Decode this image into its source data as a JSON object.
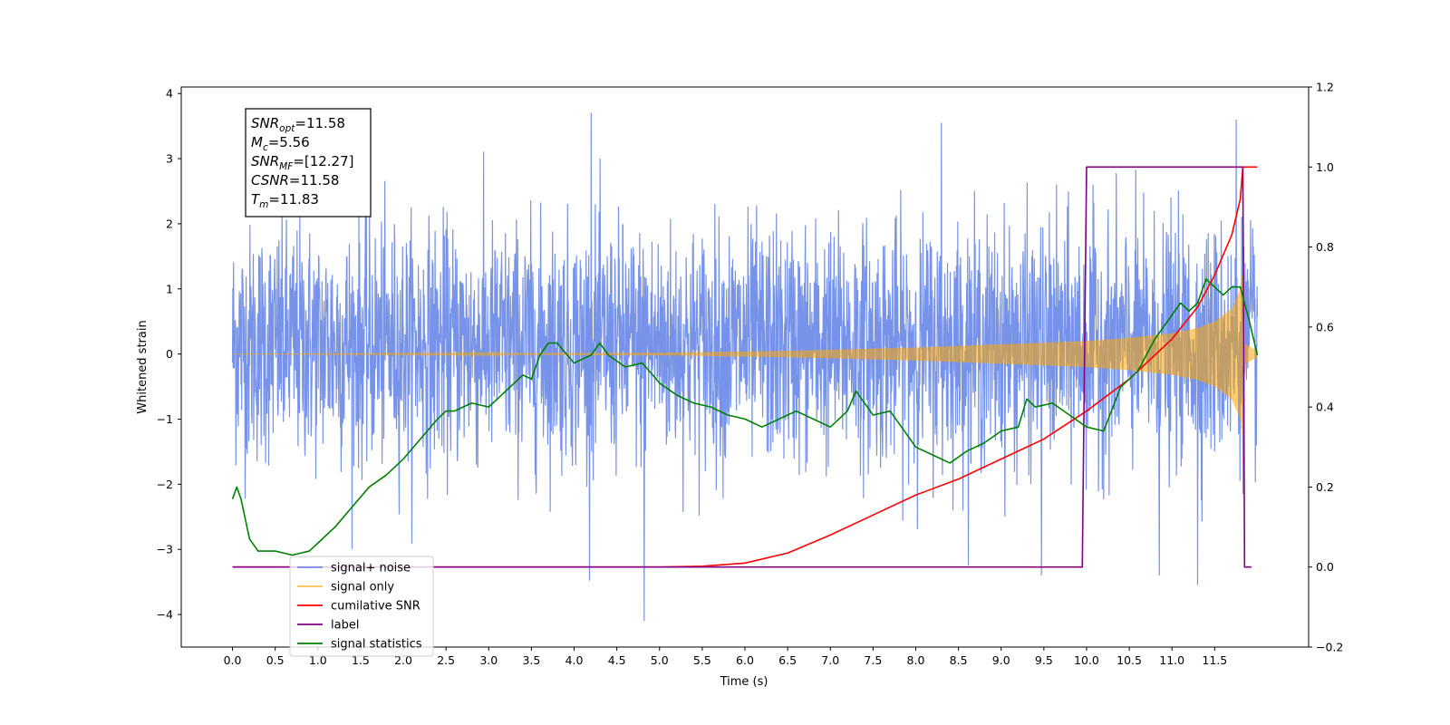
{
  "chart_data": {
    "type": "line",
    "xlabel": "Time (s)",
    "ylabel": "Whitened strain",
    "xlim": [
      -0.6,
      12.6
    ],
    "ylim": [
      -4.5,
      4.1
    ],
    "y2lim": [
      -0.2,
      1.2
    ],
    "x_ticks": [
      "0.0",
      "0.5",
      "1.0",
      "1.5",
      "2.0",
      "2.5",
      "3.0",
      "3.5",
      "4.0",
      "4.5",
      "5.0",
      "5.5",
      "6.0",
      "6.5",
      "7.0",
      "7.5",
      "8.0",
      "8.5",
      "9.0",
      "9.5",
      "10.0",
      "10.5",
      "11.0",
      "11.5"
    ],
    "y_ticks": [
      "4",
      "3",
      "2",
      "1",
      "0",
      "−1",
      "−2",
      "−3",
      "−4"
    ],
    "y2_ticks": [
      "1.2",
      "1.0",
      "0.8",
      "0.6",
      "0.4",
      "0.2",
      "0.0",
      "−0.2"
    ],
    "annotation": [
      {
        "base": "SNR",
        "sub": "opt",
        "value": "=11.58"
      },
      {
        "base": "M",
        "sub": "c",
        "value": "=5.56"
      },
      {
        "base": "SNR",
        "sub": "MF",
        "value": "=[12.27]"
      },
      {
        "base": "CSNR",
        "sub": "",
        "value": "=11.58"
      },
      {
        "base": "T",
        "sub": "m",
        "value": "=11.83"
      }
    ],
    "legend_position": "lower-left",
    "legend": [
      {
        "label": "signal+ noise",
        "color": "#4169e1"
      },
      {
        "label": "signal only",
        "color": "#ffa500"
      },
      {
        "label": "cumilative SNR",
        "color": "#ff0000"
      },
      {
        "label": "label",
        "color": "#800080"
      },
      {
        "label": "signal statistics",
        "color": "#008000"
      }
    ],
    "series": [
      {
        "name": "signal+ noise",
        "axis": "left",
        "kind": "noise",
        "color": "#4169e1",
        "x_range": [
          0.0,
          12.0
        ],
        "typical_range": [
          -2.0,
          2.3
        ],
        "extremes": [
          [
            4.2,
            3.7
          ],
          [
            4.82,
            -4.1
          ],
          [
            11.75,
            3.6
          ],
          [
            10.85,
            -3.4
          ],
          [
            11.3,
            -3.55
          ],
          [
            8.3,
            3.55
          ],
          [
            9.47,
            -3.4
          ]
        ]
      },
      {
        "name": "signal only",
        "axis": "left",
        "kind": "chirp",
        "color": "#ffa500",
        "x_range": [
          0.0,
          12.0
        ],
        "envelope": {
          "x": [
            0.0,
            5.0,
            6.5,
            8.0,
            9.0,
            10.0,
            10.5,
            11.0,
            11.3,
            11.5,
            11.7,
            11.8,
            11.83,
            11.86,
            12.0
          ],
          "y": [
            0.0,
            0.02,
            0.05,
            0.1,
            0.15,
            0.2,
            0.25,
            0.32,
            0.4,
            0.5,
            0.7,
            1.0,
            1.3,
            0.15,
            0.05
          ]
        }
      },
      {
        "name": "cumilative SNR",
        "axis": "right",
        "color": "#ff0000",
        "x": [
          0.0,
          4.5,
          5.0,
          5.5,
          6.0,
          6.5,
          7.0,
          7.5,
          8.0,
          8.5,
          9.0,
          9.5,
          10.0,
          10.5,
          11.0,
          11.3,
          11.5,
          11.7,
          11.8,
          11.83,
          11.9,
          12.0
        ],
        "y": [
          0.0,
          0.0,
          0.0,
          0.002,
          0.01,
          0.035,
          0.08,
          0.13,
          0.18,
          0.22,
          0.27,
          0.32,
          0.39,
          0.47,
          0.57,
          0.65,
          0.73,
          0.83,
          0.92,
          1.0,
          1.0,
          1.0
        ]
      },
      {
        "name": "label",
        "axis": "right",
        "color": "#800080",
        "x": [
          0.0,
          9.95,
          10.0,
          11.83,
          11.85,
          11.93
        ],
        "y": [
          0.0,
          0.0,
          1.0,
          1.0,
          0.0,
          0.0
        ]
      },
      {
        "name": "signal statistics",
        "axis": "right",
        "color": "#008000",
        "x": [
          0.0,
          0.05,
          0.1,
          0.15,
          0.2,
          0.3,
          0.4,
          0.5,
          0.6,
          0.7,
          0.8,
          0.9,
          1.0,
          1.2,
          1.4,
          1.6,
          1.8,
          2.0,
          2.2,
          2.4,
          2.5,
          2.6,
          2.8,
          3.0,
          3.1,
          3.2,
          3.4,
          3.5,
          3.6,
          3.7,
          3.8,
          4.0,
          4.2,
          4.3,
          4.4,
          4.6,
          4.8,
          5.0,
          5.2,
          5.4,
          5.6,
          5.8,
          6.0,
          6.2,
          6.4,
          6.6,
          6.8,
          7.0,
          7.2,
          7.3,
          7.5,
          7.7,
          7.8,
          8.0,
          8.2,
          8.4,
          8.6,
          8.8,
          9.0,
          9.2,
          9.3,
          9.4,
          9.6,
          9.8,
          10.0,
          10.2,
          10.4,
          10.6,
          10.8,
          11.0,
          11.1,
          11.2,
          11.3,
          11.4,
          11.5,
          11.6,
          11.7,
          11.8,
          11.9,
          12.0
        ],
        "y": [
          0.17,
          0.2,
          0.17,
          0.12,
          0.07,
          0.04,
          0.04,
          0.04,
          0.035,
          0.03,
          0.035,
          0.04,
          0.06,
          0.1,
          0.15,
          0.2,
          0.23,
          0.27,
          0.32,
          0.37,
          0.39,
          0.39,
          0.41,
          0.4,
          0.42,
          0.44,
          0.48,
          0.47,
          0.53,
          0.56,
          0.56,
          0.51,
          0.53,
          0.56,
          0.53,
          0.5,
          0.51,
          0.46,
          0.43,
          0.41,
          0.4,
          0.38,
          0.37,
          0.35,
          0.37,
          0.39,
          0.37,
          0.35,
          0.39,
          0.44,
          0.38,
          0.39,
          0.36,
          0.3,
          0.28,
          0.26,
          0.29,
          0.31,
          0.34,
          0.35,
          0.42,
          0.4,
          0.41,
          0.38,
          0.35,
          0.34,
          0.45,
          0.49,
          0.57,
          0.63,
          0.66,
          0.64,
          0.66,
          0.72,
          0.7,
          0.68,
          0.7,
          0.7,
          0.62,
          0.53
        ]
      }
    ]
  }
}
